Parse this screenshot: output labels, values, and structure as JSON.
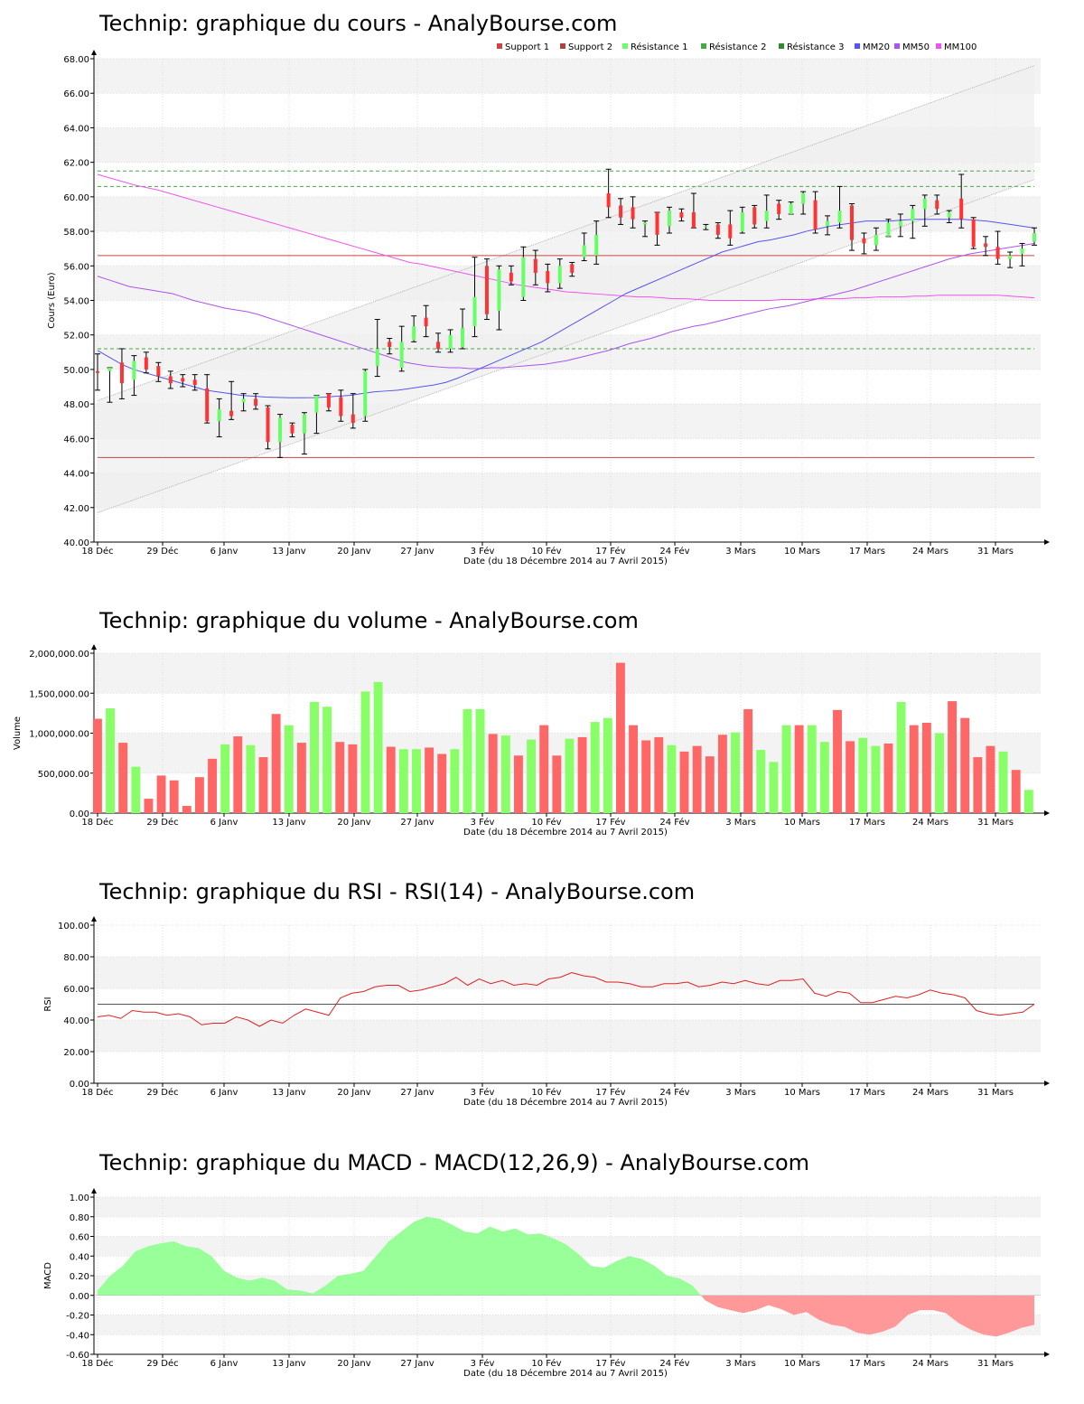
{
  "colors": {
    "up": "#66ff66",
    "down": "#ff3333",
    "vol_up": "#88ff66",
    "vol_down": "#ff6666",
    "band": "#f3f3f3",
    "support": "#cc4444",
    "resistance": "#44aa44",
    "mm20": "#5555ee",
    "mm50": "#aa55ee",
    "mm100": "#ee55ee",
    "rsi_line": "#dd2222",
    "macd_pos": "#99ff99",
    "macd_neg": "#ff9999"
  },
  "x_ticks": [
    "18 Déc",
    "29 Déc",
    "6 Janv",
    "13 Janv",
    "20 Janv",
    "27 Janv",
    "3 Fév",
    "10 Fév",
    "17 Fév",
    "24 Fév",
    "3 Mars",
    "10 Mars",
    "17 Mars",
    "24 Mars",
    "31 Mars"
  ],
  "chart_data": [
    {
      "type": "candlestick",
      "title": "Technip: graphique du cours - AnalyBourse.com",
      "ylabel": "Cours (Euro)",
      "xlabel": "Date (du 18 Décembre 2014 au 7 Avril 2015)",
      "ylim": [
        40,
        68
      ],
      "y_ticks": [
        "40.00",
        "42.00",
        "44.00",
        "46.00",
        "48.00",
        "50.00",
        "52.00",
        "54.00",
        "56.00",
        "58.00",
        "60.00",
        "62.00",
        "64.00",
        "66.00",
        "68.00"
      ],
      "legend": [
        "Support 1",
        "Support 2",
        "Résistance 1",
        "Résistance 2",
        "Résistance 3",
        "MM20",
        "MM50",
        "MM100"
      ],
      "legend_position": "top-right",
      "support": [
        56.6,
        44.9
      ],
      "resistance": [
        51.2,
        60.6,
        61.5
      ],
      "trend_channel": {
        "lower": [
          41.7,
          61.0
        ],
        "upper": [
          48.2,
          67.6
        ]
      },
      "candles": [
        [
          49.9,
          49.8,
          50.9,
          48.8
        ],
        [
          49.9,
          50.1,
          50.1,
          48.1
        ],
        [
          50.4,
          49.2,
          51.2,
          48.3
        ],
        [
          49.4,
          50.5,
          50.8,
          48.5
        ],
        [
          50.7,
          50.0,
          51.0,
          49.8
        ],
        [
          50.2,
          49.6,
          50.4,
          49.3
        ],
        [
          49.6,
          49.2,
          49.9,
          48.9
        ],
        [
          49.5,
          49.3,
          49.7,
          49.0
        ],
        [
          49.4,
          49.1,
          49.7,
          48.8
        ],
        [
          48.9,
          47.0,
          49.7,
          46.9
        ],
        [
          47.0,
          47.7,
          48.3,
          46.1
        ],
        [
          47.6,
          47.3,
          49.3,
          47.1
        ],
        [
          48.1,
          48.3,
          48.6,
          47.6
        ],
        [
          48.3,
          47.9,
          48.6,
          47.7
        ],
        [
          47.8,
          45.8,
          47.9,
          45.4
        ],
        [
          45.8,
          47.2,
          47.4,
          44.9
        ],
        [
          46.8,
          46.3,
          46.9,
          46.1
        ],
        [
          46.3,
          47.4,
          47.5,
          45.1
        ],
        [
          47.5,
          48.5,
          48.5,
          46.3
        ],
        [
          48.6,
          47.8,
          48.6,
          47.6
        ],
        [
          48.4,
          47.3,
          48.8,
          47.0
        ],
        [
          47.4,
          46.9,
          48.6,
          46.6
        ],
        [
          47.3,
          49.9,
          50.0,
          47.0
        ],
        [
          50.2,
          51.2,
          52.9,
          49.6
        ],
        [
          51.6,
          51.3,
          51.8,
          50.9
        ],
        [
          50.1,
          51.6,
          52.5,
          49.9
        ],
        [
          51.7,
          52.5,
          53.1,
          51.6
        ],
        [
          53.0,
          52.5,
          53.7,
          51.9
        ],
        [
          51.6,
          51.2,
          52.1,
          51.0
        ],
        [
          51.2,
          52.0,
          52.3,
          51.0
        ],
        [
          51.3,
          52.4,
          53.5,
          51.2
        ],
        [
          52.5,
          54.2,
          56.5,
          51.9
        ],
        [
          56.0,
          53.2,
          56.4,
          52.9
        ],
        [
          53.4,
          55.8,
          56.0,
          52.3
        ],
        [
          55.6,
          55.1,
          56.0,
          54.9
        ],
        [
          54.2,
          56.5,
          57.1,
          54.0
        ],
        [
          56.4,
          55.6,
          56.9,
          54.9
        ],
        [
          55.7,
          55.0,
          56.1,
          54.5
        ],
        [
          55.0,
          56.0,
          56.4,
          54.7
        ],
        [
          56.1,
          55.6,
          56.2,
          55.4
        ],
        [
          56.5,
          57.2,
          57.9,
          56.3
        ],
        [
          56.6,
          57.8,
          58.6,
          56.1
        ],
        [
          60.2,
          59.4,
          61.6,
          58.8
        ],
        [
          59.5,
          58.8,
          59.9,
          58.4
        ],
        [
          59.4,
          58.7,
          60.0,
          58.2
        ],
        [
          58.4,
          58.5,
          58.6,
          57.7
        ],
        [
          59.1,
          57.8,
          59.1,
          57.2
        ],
        [
          58.3,
          59.2,
          59.4,
          57.9
        ],
        [
          59.1,
          58.8,
          59.3,
          58.6
        ],
        [
          59.1,
          58.2,
          60.2,
          58.2
        ],
        [
          58.3,
          58.3,
          58.4,
          58.1
        ],
        [
          58.4,
          57.8,
          58.5,
          57.6
        ],
        [
          58.4,
          57.6,
          59.2,
          57.2
        ],
        [
          58.0,
          59.1,
          59.4,
          57.9
        ],
        [
          59.4,
          58.4,
          59.5,
          58.2
        ],
        [
          58.6,
          59.2,
          60.1,
          58.2
        ],
        [
          59.6,
          59.0,
          59.8,
          58.7
        ],
        [
          59.0,
          59.6,
          59.7,
          59.0
        ],
        [
          59.6,
          60.2,
          60.3,
          59.0
        ],
        [
          59.8,
          58.1,
          60.3,
          57.9
        ],
        [
          58.3,
          58.6,
          58.9,
          57.8
        ],
        [
          58.5,
          59.2,
          60.6,
          58.2
        ],
        [
          59.5,
          57.5,
          59.6,
          56.9
        ],
        [
          57.6,
          57.3,
          57.9,
          56.7
        ],
        [
          57.2,
          57.8,
          58.2,
          56.9
        ],
        [
          57.7,
          58.5,
          58.7,
          57.7
        ],
        [
          58.3,
          58.6,
          59.0,
          57.7
        ],
        [
          58.6,
          59.3,
          59.5,
          57.6
        ],
        [
          59.3,
          59.9,
          60.1,
          58.3
        ],
        [
          59.8,
          59.3,
          60.1,
          59.0
        ],
        [
          58.8,
          59.1,
          59.2,
          58.5
        ],
        [
          59.9,
          58.7,
          61.3,
          58.2
        ],
        [
          58.7,
          57.1,
          58.8,
          57.0
        ],
        [
          57.3,
          57.1,
          57.7,
          56.6
        ],
        [
          57.1,
          56.4,
          58.0,
          56.1
        ],
        [
          56.4,
          56.6,
          56.8,
          55.9
        ],
        [
          56.7,
          57.0,
          57.3,
          56.0
        ],
        [
          57.4,
          57.9,
          58.2,
          57.2
        ]
      ],
      "mm20": [
        51.1,
        50.7,
        50.3,
        50.0,
        49.8,
        49.6,
        49.4,
        49.2,
        49.0,
        48.8,
        48.7,
        48.6,
        48.5,
        48.45,
        48.4,
        48.38,
        48.36,
        48.36,
        48.37,
        48.4,
        48.45,
        48.5,
        48.6,
        48.7,
        48.75,
        48.8,
        48.9,
        49.0,
        49.1,
        49.25,
        49.5,
        49.8,
        50.1,
        50.4,
        50.7,
        51.0,
        51.3,
        51.6,
        52.0,
        52.4,
        52.8,
        53.2,
        53.6,
        54.0,
        54.4,
        54.7,
        55.0,
        55.3,
        55.6,
        55.9,
        56.2,
        56.5,
        56.8,
        57.0,
        57.2,
        57.4,
        57.5,
        57.65,
        57.8,
        58.0,
        58.15,
        58.3,
        58.4,
        58.5,
        58.6,
        58.6,
        58.6,
        58.65,
        58.7,
        58.7,
        58.7,
        58.7,
        58.7,
        58.65,
        58.6,
        58.5,
        58.4,
        58.3,
        58.2
      ],
      "mm50": [
        55.4,
        55.2,
        55.0,
        54.8,
        54.7,
        54.6,
        54.5,
        54.4,
        54.2,
        54.0,
        53.85,
        53.7,
        53.55,
        53.45,
        53.35,
        53.2,
        53.0,
        52.8,
        52.6,
        52.4,
        52.2,
        52.0,
        51.8,
        51.6,
        51.4,
        51.2,
        51.0,
        50.8,
        50.6,
        50.4,
        50.3,
        50.2,
        50.15,
        50.1,
        50.1,
        50.05,
        50.05,
        50.1,
        50.1,
        50.15,
        50.2,
        50.25,
        50.3,
        50.4,
        50.5,
        50.65,
        50.8,
        50.95,
        51.1,
        51.3,
        51.5,
        51.65,
        51.8,
        52.0,
        52.2,
        52.35,
        52.5,
        52.6,
        52.75,
        52.9,
        53.05,
        53.2,
        53.35,
        53.5,
        53.6,
        53.7,
        53.85,
        54.0,
        54.15,
        54.3,
        54.45,
        54.6,
        54.8,
        55.0,
        55.2,
        55.4,
        55.6,
        55.8,
        56.0,
        56.2,
        56.4,
        56.55,
        56.7,
        56.8,
        56.9,
        57.0,
        57.1,
        57.2,
        57.3
      ],
      "mm100": [
        61.3,
        61.1,
        60.9,
        60.7,
        60.55,
        60.4,
        60.2,
        60.0,
        59.8,
        59.6,
        59.4,
        59.2,
        59.0,
        58.8,
        58.6,
        58.4,
        58.2,
        58.0,
        57.8,
        57.6,
        57.4,
        57.2,
        57.0,
        56.8,
        56.6,
        56.4,
        56.2,
        56.1,
        55.95,
        55.8,
        55.65,
        55.5,
        55.35,
        55.2,
        55.05,
        54.9,
        54.8,
        54.7,
        54.6,
        54.5,
        54.45,
        54.4,
        54.35,
        54.3,
        54.25,
        54.2,
        54.2,
        54.15,
        54.1,
        54.1,
        54.05,
        54.0,
        54.0,
        54.0,
        54.0,
        54.0,
        54.0,
        54.05,
        54.05,
        54.05,
        54.1,
        54.1,
        54.1,
        54.15,
        54.15,
        54.2,
        54.2,
        54.2,
        54.25,
        54.25,
        54.3,
        54.3,
        54.3,
        54.3,
        54.3,
        54.3,
        54.25,
        54.2,
        54.15
      ]
    },
    {
      "type": "bar",
      "title": "Technip: graphique du volume - AnalyBourse.com",
      "ylabel": "Volume",
      "xlabel": "Date (du 18 Décembre 2014 au 7 Avril 2015)",
      "ylim": [
        0,
        2000000
      ],
      "y_ticks": [
        "0.00",
        "500,000.00",
        "1,000,000.00",
        "1,500,000.00",
        "2,000,000.00"
      ],
      "values": [
        1180000,
        1310000,
        880000,
        580000,
        180000,
        470000,
        410000,
        90000,
        450000,
        680000,
        860000,
        960000,
        850000,
        700000,
        1240000,
        1100000,
        880000,
        1390000,
        1330000,
        890000,
        860000,
        1520000,
        1640000,
        830000,
        800000,
        800000,
        820000,
        740000,
        800000,
        1300000,
        1300000,
        990000,
        970000,
        720000,
        920000,
        1100000,
        720000,
        930000,
        950000,
        1140000,
        1190000,
        1880000,
        1100000,
        910000,
        950000,
        850000,
        770000,
        840000,
        710000,
        980000,
        1010000,
        1300000,
        790000,
        640000,
        1100000,
        1100000,
        1100000,
        890000,
        1290000,
        900000,
        940000,
        840000,
        870000,
        1390000,
        1100000,
        1130000,
        1000000,
        1400000,
        1190000,
        700000,
        840000,
        770000,
        540000,
        290000
      ],
      "directions": [
        "d",
        "u",
        "d",
        "u",
        "d",
        "d",
        "d",
        "d",
        "d",
        "d",
        "u",
        "d",
        "u",
        "d",
        "d",
        "u",
        "d",
        "u",
        "u",
        "d",
        "d",
        "u",
        "u",
        "d",
        "u",
        "u",
        "d",
        "d",
        "u",
        "u",
        "u",
        "d",
        "u",
        "d",
        "u",
        "d",
        "d",
        "u",
        "d",
        "u",
        "u",
        "d",
        "d",
        "d",
        "d",
        "u",
        "d",
        "d",
        "d",
        "d",
        "u",
        "d",
        "u",
        "u",
        "u",
        "d",
        "u",
        "u",
        "d",
        "d",
        "u",
        "u",
        "d",
        "u",
        "d",
        "d",
        "u",
        "d",
        "d",
        "d",
        "d",
        "u",
        "d",
        "u"
      ]
    },
    {
      "type": "line",
      "title": "Technip: graphique du RSI - RSI(14) - AnalyBourse.com",
      "ylabel": "RSI",
      "xlabel": "Date (du 18 Décembre 2014 au 7 Avril 2015)",
      "ylim": [
        0,
        100
      ],
      "y_ticks": [
        "0.00",
        "20.00",
        "40.00",
        "60.00",
        "80.00",
        "100.00"
      ],
      "reference": 50,
      "values": [
        42,
        43,
        41,
        46,
        45,
        45,
        43,
        44,
        42,
        37,
        38,
        38,
        42,
        40,
        36,
        40,
        38,
        43,
        47,
        45,
        43,
        54,
        57,
        58,
        61,
        62,
        62,
        58,
        59,
        61,
        63,
        67,
        62,
        66,
        63,
        65,
        62,
        63,
        62,
        66,
        67,
        70,
        68,
        67,
        64,
        64,
        63,
        61,
        61,
        63,
        63,
        64,
        61,
        62,
        64,
        63,
        65,
        63,
        62,
        65,
        65,
        66,
        57,
        55,
        58,
        57,
        51,
        51,
        53,
        55,
        54,
        56,
        59,
        57,
        56,
        54,
        46,
        44,
        43,
        44,
        45,
        50
      ]
    },
    {
      "type": "area",
      "title": "Technip: graphique du MACD - MACD(12,26,9) - AnalyBourse.com",
      "ylabel": "MACD",
      "xlabel": "Date (du 18 Décembre 2014 au 7 Avril 2015)",
      "ylim": [
        -0.6,
        1.0
      ],
      "y_ticks": [
        "-0.60",
        "-0.40",
        "-0.20",
        "0.00",
        "0.20",
        "0.40",
        "0.60",
        "0.80",
        "1.00"
      ],
      "values": [
        0.05,
        0.2,
        0.3,
        0.45,
        0.5,
        0.53,
        0.55,
        0.5,
        0.48,
        0.4,
        0.25,
        0.18,
        0.15,
        0.18,
        0.15,
        0.06,
        0.05,
        0.02,
        0.1,
        0.2,
        0.22,
        0.25,
        0.4,
        0.55,
        0.65,
        0.75,
        0.8,
        0.78,
        0.72,
        0.65,
        0.63,
        0.7,
        0.65,
        0.68,
        0.62,
        0.63,
        0.58,
        0.52,
        0.42,
        0.3,
        0.28,
        0.35,
        0.4,
        0.37,
        0.3,
        0.2,
        0.17,
        0.1,
        -0.05,
        -0.12,
        -0.15,
        -0.18,
        -0.15,
        -0.1,
        -0.14,
        -0.2,
        -0.17,
        -0.25,
        -0.3,
        -0.32,
        -0.38,
        -0.4,
        -0.37,
        -0.32,
        -0.2,
        -0.15,
        -0.15,
        -0.18,
        -0.28,
        -0.35,
        -0.4,
        -0.42,
        -0.38,
        -0.33,
        -0.3
      ]
    }
  ]
}
